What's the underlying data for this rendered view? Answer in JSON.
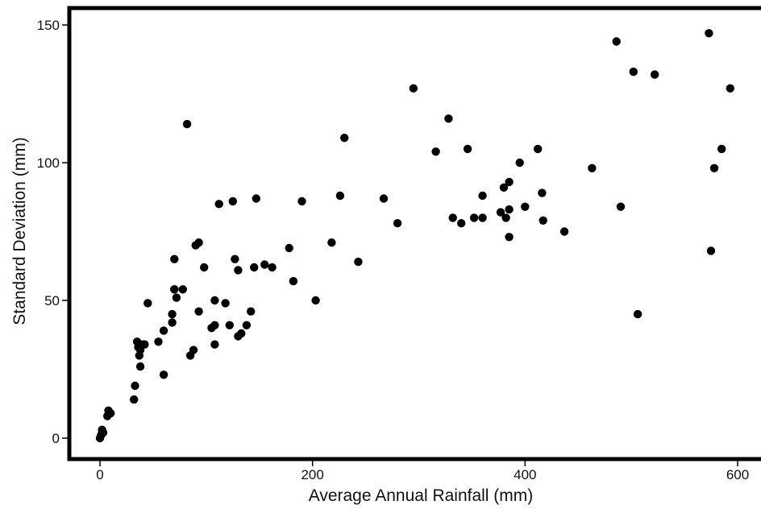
{
  "chart_data": {
    "type": "scatter",
    "xlabel": "Average Annual Rainfall (mm)",
    "ylabel": "Standard Deviation (mm)",
    "xlim": [
      -30,
      625
    ],
    "ylim": [
      -8,
      157
    ],
    "xticks": [
      0,
      200,
      400,
      600
    ],
    "yticks": [
      0,
      50,
      100,
      150
    ],
    "grid": false,
    "legend": "none",
    "marker_color": "#000000",
    "series": [
      {
        "x": [
          0,
          1,
          2,
          2,
          3,
          7,
          8,
          10,
          32,
          33,
          35,
          37,
          36,
          38,
          40,
          42,
          38,
          45,
          55,
          60,
          60,
          68,
          68,
          70,
          70,
          72,
          70,
          78,
          82,
          85,
          88,
          90,
          93,
          93,
          98,
          105,
          108,
          108,
          108,
          112,
          118,
          122,
          125,
          127,
          130,
          130,
          133,
          138,
          142,
          145,
          147,
          155,
          162,
          178,
          182,
          190,
          203,
          218,
          226,
          230,
          243,
          267,
          280,
          295,
          316,
          328,
          332,
          340,
          346,
          352,
          360,
          360,
          377,
          380,
          382,
          385,
          385,
          385,
          395,
          400,
          412,
          416,
          417,
          437,
          463,
          486,
          490,
          502,
          506,
          522,
          573,
          575,
          578,
          585,
          593
        ],
        "y": [
          0,
          1,
          2,
          3,
          2,
          8,
          10,
          9,
          14,
          19,
          35,
          30,
          33,
          26,
          34,
          34,
          32,
          49,
          35,
          39,
          23,
          45,
          42,
          54,
          65,
          51,
          54,
          54,
          114,
          30,
          32,
          70,
          71,
          46,
          62,
          40,
          41,
          34,
          50,
          85,
          49,
          41,
          86,
          65,
          37,
          61,
          38,
          41,
          46,
          62,
          87,
          63,
          62,
          69,
          57,
          86,
          50,
          71,
          88,
          109,
          64,
          87,
          78,
          127,
          104,
          116,
          80,
          78,
          105,
          80,
          80,
          88,
          82,
          91,
          80,
          93,
          83,
          73,
          100,
          84,
          105,
          89,
          79,
          75,
          98,
          144,
          84,
          133,
          45,
          132,
          147,
          68,
          98,
          105,
          127
        ]
      }
    ]
  }
}
